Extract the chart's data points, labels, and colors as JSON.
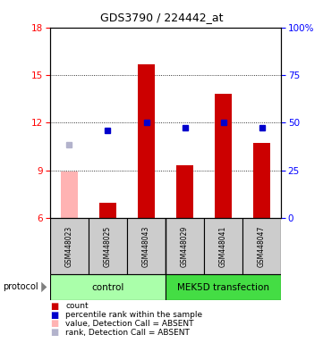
{
  "title": "GDS3790 / 224442_at",
  "samples": [
    "GSM448023",
    "GSM448025",
    "GSM448043",
    "GSM448029",
    "GSM448041",
    "GSM448047"
  ],
  "bar_values": [
    8.9,
    6.95,
    15.7,
    9.3,
    13.8,
    10.7
  ],
  "bar_absent": [
    true,
    false,
    false,
    false,
    false,
    false
  ],
  "dot_values": [
    10.6,
    11.5,
    12.0,
    11.65,
    12.0,
    11.65
  ],
  "dot_absent": [
    true,
    false,
    false,
    false,
    false,
    false
  ],
  "ylim_left": [
    6,
    18
  ],
  "ylim_right": [
    0,
    100
  ],
  "yticks_left": [
    6,
    9,
    12,
    15,
    18
  ],
  "yticks_right": [
    0,
    25,
    50,
    75,
    100
  ],
  "ytick_labels_right": [
    "0",
    "25",
    "50",
    "75",
    "100%"
  ],
  "bar_color": "#cc0000",
  "bar_absent_color": "#ffb3b3",
  "dot_color": "#0000cc",
  "dot_absent_color": "#b3b3cc",
  "group_control_color": "#aaffaa",
  "group_mek_color": "#44dd44",
  "sample_box_color": "#cccccc",
  "background_color": "#ffffff",
  "legend_items": [
    {
      "color": "#cc0000",
      "label": "count"
    },
    {
      "color": "#0000cc",
      "label": "percentile rank within the sample"
    },
    {
      "color": "#ffb3b3",
      "label": "value, Detection Call = ABSENT"
    },
    {
      "color": "#b3b3cc",
      "label": "rank, Detection Call = ABSENT"
    }
  ]
}
